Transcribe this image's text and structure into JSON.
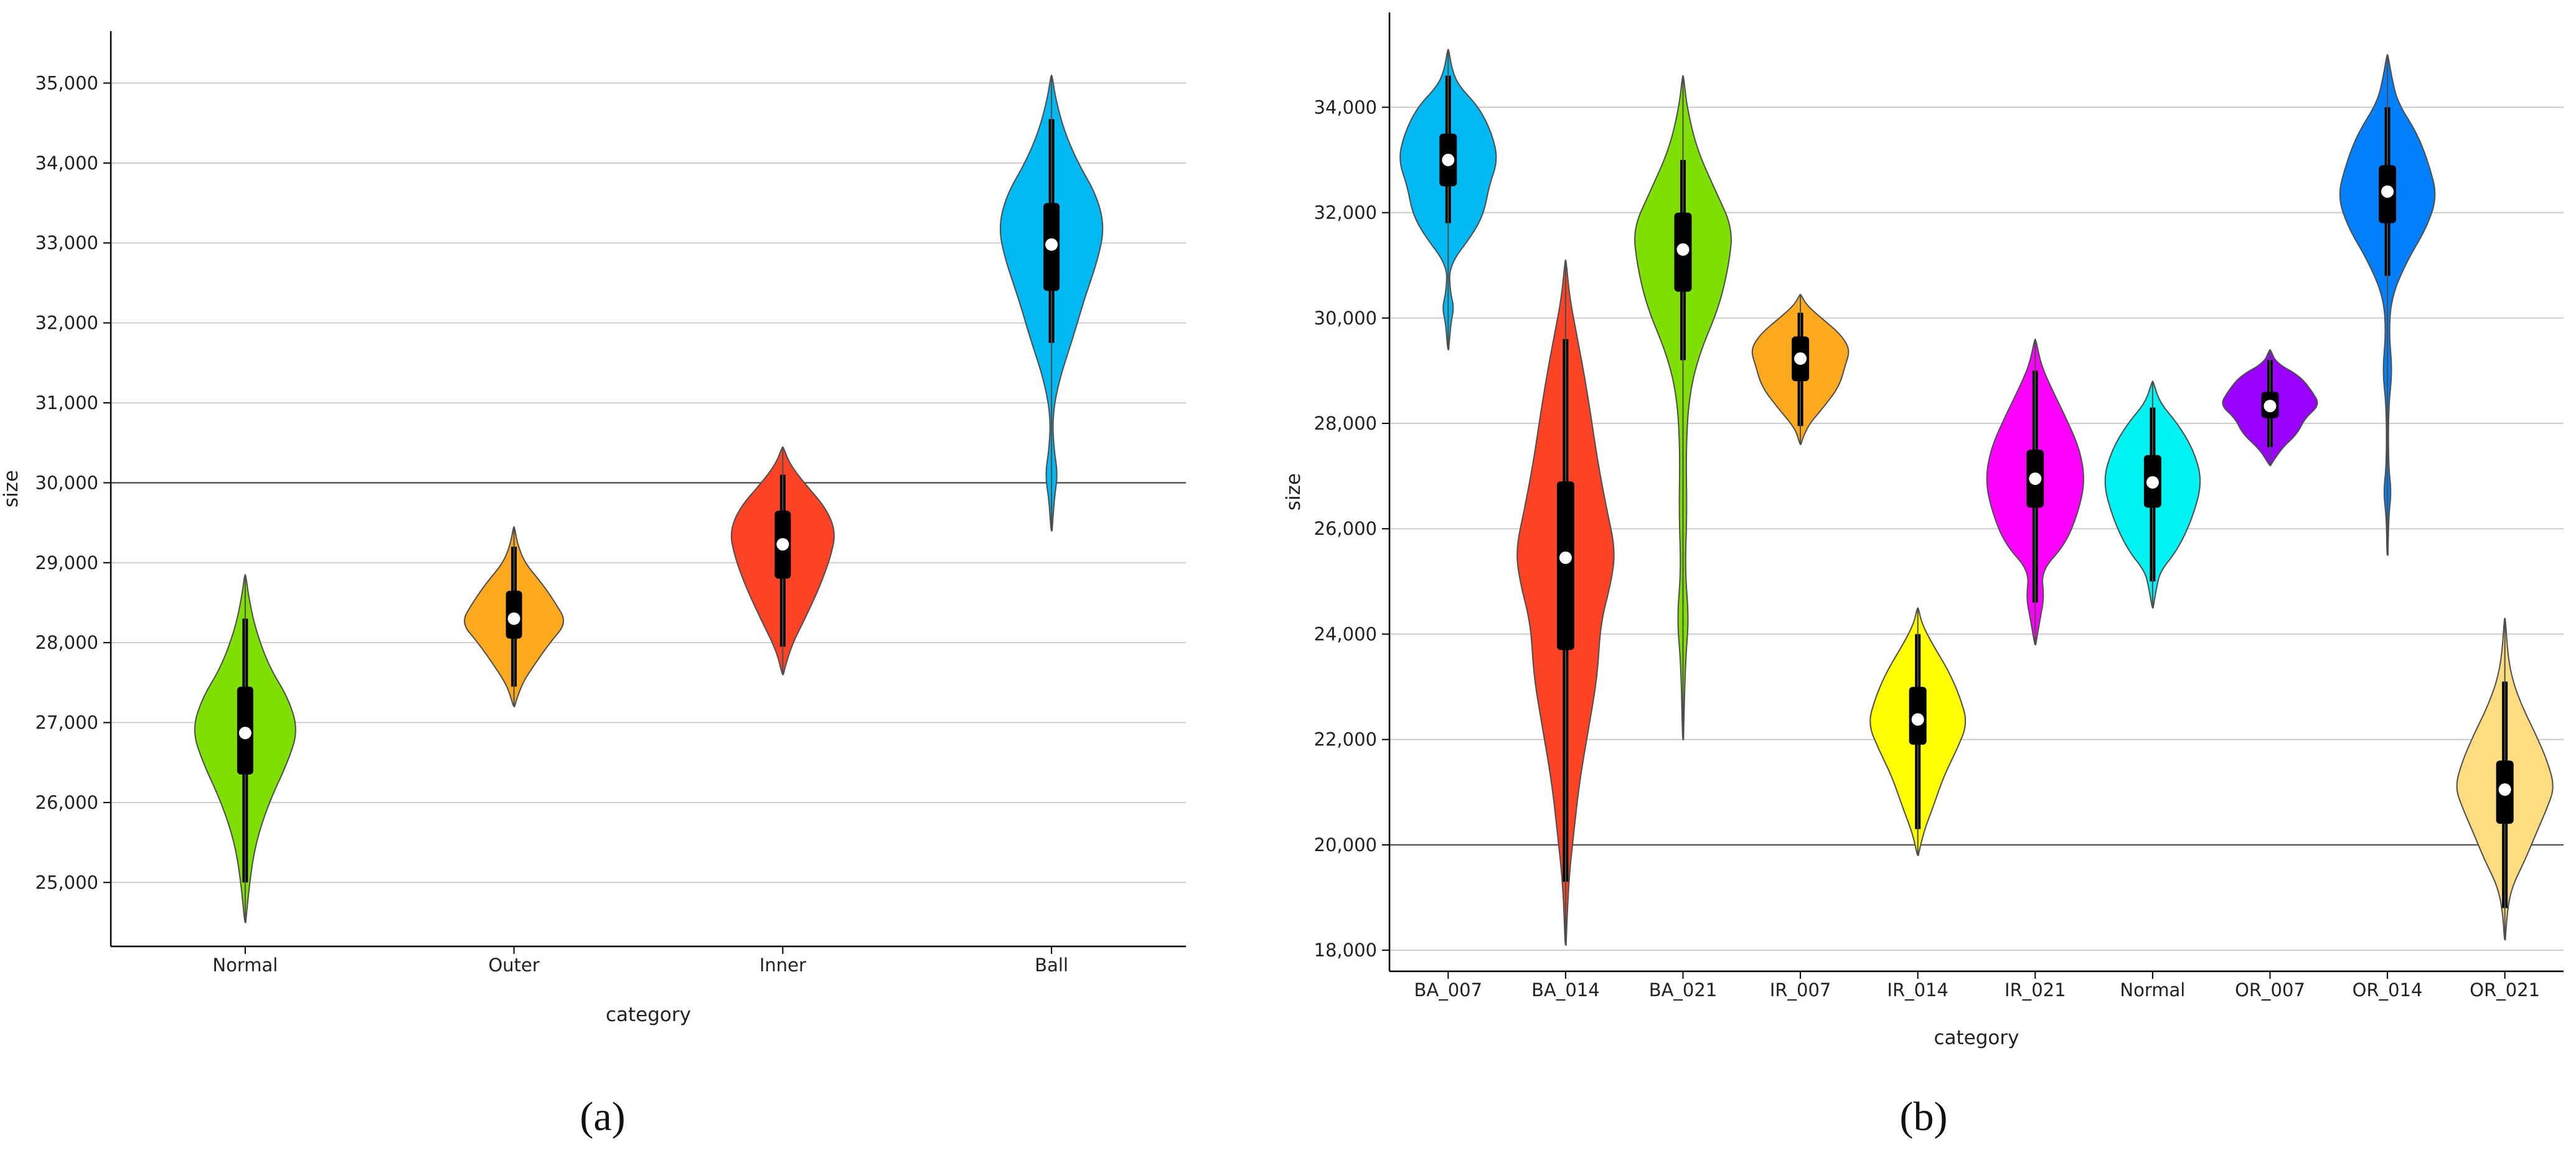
{
  "colors": {
    "grid": "#c8c8c8",
    "gridDark": "#555555",
    "axis": "#000000",
    "outline": "#4d4d4d",
    "box": "#000000",
    "median": "#ffffff"
  },
  "chart_data": [
    {
      "panel_label": "(a)",
      "type": "violin",
      "xlabel": "category",
      "ylabel": "size",
      "ylim": [
        24200,
        35650
      ],
      "yticks": [
        25000,
        26000,
        27000,
        28000,
        29000,
        30000,
        31000,
        32000,
        33000,
        34000,
        35000
      ],
      "ytick_labels": [
        "25,000",
        "26,000",
        "27,000",
        "28,000",
        "29,000",
        "30,000",
        "31,000",
        "32,000",
        "33,000",
        "34,000",
        "35,000"
      ],
      "dark_gridline": 30000,
      "categories": [
        "Normal",
        "Outer",
        "Inner",
        "Ball"
      ],
      "series": [
        {
          "color": "#7fe000",
          "min": 24500,
          "max": 28850,
          "whisker_low": 25000,
          "whisker_high": 28300,
          "q1": 26350,
          "q3": 27450,
          "median": 26870,
          "profile": [
            [
              24500,
              0.01
            ],
            [
              25000,
              0.08
            ],
            [
              25500,
              0.2
            ],
            [
              26000,
              0.45
            ],
            [
              26500,
              0.8
            ],
            [
              26900,
              1.0
            ],
            [
              27300,
              0.82
            ],
            [
              27700,
              0.45
            ],
            [
              28200,
              0.18
            ],
            [
              28600,
              0.06
            ],
            [
              28850,
              0.01
            ]
          ]
        },
        {
          "color": "#ffa91f",
          "min": 27200,
          "max": 29450,
          "whisker_low": 27450,
          "whisker_high": 29200,
          "q1": 28050,
          "q3": 28650,
          "median": 28300,
          "profile": [
            [
              27200,
              0.01
            ],
            [
              27450,
              0.12
            ],
            [
              27700,
              0.36
            ],
            [
              28000,
              0.68
            ],
            [
              28250,
              1.0
            ],
            [
              28500,
              0.78
            ],
            [
              28750,
              0.52
            ],
            [
              29000,
              0.2
            ],
            [
              29250,
              0.06
            ],
            [
              29450,
              0.01
            ]
          ]
        },
        {
          "color": "#ff4326",
          "min": 27600,
          "max": 30450,
          "whisker_low": 27950,
          "whisker_high": 30100,
          "q1": 28800,
          "q3": 29650,
          "median": 29230,
          "profile": [
            [
              27600,
              0.01
            ],
            [
              27900,
              0.12
            ],
            [
              28300,
              0.42
            ],
            [
              28700,
              0.7
            ],
            [
              29100,
              0.92
            ],
            [
              29400,
              1.0
            ],
            [
              29700,
              0.8
            ],
            [
              30000,
              0.4
            ],
            [
              30250,
              0.12
            ],
            [
              30450,
              0.01
            ]
          ]
        },
        {
          "color": "#00b8f2",
          "min": 29400,
          "max": 35100,
          "whisker_low": 31750,
          "whisker_high": 34550,
          "q1": 32400,
          "q3": 33500,
          "median": 32980,
          "profile": [
            [
              29400,
              0.01
            ],
            [
              29800,
              0.05
            ],
            [
              30100,
              0.12
            ],
            [
              30450,
              0.04
            ],
            [
              30850,
              0.02
            ],
            [
              31300,
              0.15
            ],
            [
              31800,
              0.4
            ],
            [
              32300,
              0.62
            ],
            [
              32800,
              0.88
            ],
            [
              33200,
              1.0
            ],
            [
              33600,
              0.85
            ],
            [
              34000,
              0.5
            ],
            [
              34400,
              0.24
            ],
            [
              34800,
              0.08
            ],
            [
              35100,
              0.01
            ]
          ]
        }
      ]
    },
    {
      "panel_label": "(b)",
      "type": "violin",
      "xlabel": "category",
      "ylabel": "size",
      "ylim": [
        17600,
        35800
      ],
      "yticks": [
        18000,
        20000,
        22000,
        24000,
        26000,
        28000,
        30000,
        32000,
        34000
      ],
      "ytick_labels": [
        "18,000",
        "20,000",
        "22,000",
        "24,000",
        "26,000",
        "28,000",
        "30,000",
        "32,000",
        "34,000"
      ],
      "dark_gridline": 20000,
      "categories": [
        "BA_007",
        "BA_014",
        "BA_021",
        "IR_007",
        "IR_014",
        "IR_021",
        "Normal",
        "OR_007",
        "OR_014",
        "OR_021"
      ],
      "series": [
        {
          "color": "#00b8f2",
          "min": 29400,
          "max": 35100,
          "whisker_low": 31800,
          "whisker_high": 34600,
          "q1": 32500,
          "q3": 33500,
          "median": 33000,
          "profile": [
            [
              29400,
              0.01
            ],
            [
              29900,
              0.05
            ],
            [
              30200,
              0.12
            ],
            [
              30500,
              0.04
            ],
            [
              31000,
              0.02
            ],
            [
              31600,
              0.5
            ],
            [
              32000,
              0.72
            ],
            [
              32500,
              0.82
            ],
            [
              33000,
              1.0
            ],
            [
              33500,
              0.88
            ],
            [
              34000,
              0.62
            ],
            [
              34400,
              0.22
            ],
            [
              34700,
              0.08
            ],
            [
              35100,
              0.01
            ]
          ]
        },
        {
          "color": "#ff4326",
          "min": 18100,
          "max": 31100,
          "whisker_low": 19300,
          "whisker_high": 29600,
          "q1": 23700,
          "q3": 26900,
          "median": 25450,
          "profile": [
            [
              18100,
              0.01
            ],
            [
              19200,
              0.05
            ],
            [
              20200,
              0.16
            ],
            [
              21200,
              0.28
            ],
            [
              22200,
              0.46
            ],
            [
              23200,
              0.64
            ],
            [
              24200,
              0.7
            ],
            [
              25000,
              0.92
            ],
            [
              25600,
              1.0
            ],
            [
              26400,
              0.82
            ],
            [
              27300,
              0.64
            ],
            [
              28200,
              0.5
            ],
            [
              29000,
              0.36
            ],
            [
              29700,
              0.22
            ],
            [
              30400,
              0.08
            ],
            [
              31100,
              0.01
            ]
          ]
        },
        {
          "color": "#7fe000",
          "min": 22000,
          "max": 34600,
          "whisker_low": 29200,
          "whisker_high": 33000,
          "q1": 30500,
          "q3": 32000,
          "median": 31300,
          "profile": [
            [
              22000,
              0.01
            ],
            [
              23400,
              0.04
            ],
            [
              24300,
              0.12
            ],
            [
              25200,
              0.04
            ],
            [
              26300,
              0.08
            ],
            [
              27500,
              0.06
            ],
            [
              28500,
              0.12
            ],
            [
              29300,
              0.32
            ],
            [
              30200,
              0.72
            ],
            [
              31000,
              0.92
            ],
            [
              31700,
              1.0
            ],
            [
              32400,
              0.66
            ],
            [
              33200,
              0.28
            ],
            [
              34000,
              0.08
            ],
            [
              34600,
              0.01
            ]
          ]
        },
        {
          "color": "#ffa91f",
          "min": 27600,
          "max": 30450,
          "whisker_low": 27950,
          "whisker_high": 30100,
          "q1": 28800,
          "q3": 29650,
          "median": 29230,
          "profile": [
            [
              27600,
              0.01
            ],
            [
              27900,
              0.1
            ],
            [
              28300,
              0.46
            ],
            [
              28700,
              0.78
            ],
            [
              29100,
              0.9
            ],
            [
              29400,
              1.0
            ],
            [
              29700,
              0.8
            ],
            [
              30000,
              0.42
            ],
            [
              30250,
              0.12
            ],
            [
              30450,
              0.01
            ]
          ]
        },
        {
          "color": "#ffff00",
          "min": 19800,
          "max": 24500,
          "whisker_low": 20300,
          "whisker_high": 24000,
          "q1": 21900,
          "q3": 23000,
          "median": 22380,
          "profile": [
            [
              19800,
              0.01
            ],
            [
              20200,
              0.1
            ],
            [
              20700,
              0.3
            ],
            [
              21300,
              0.52
            ],
            [
              21800,
              0.78
            ],
            [
              22300,
              1.0
            ],
            [
              22800,
              0.85
            ],
            [
              23300,
              0.62
            ],
            [
              23800,
              0.3
            ],
            [
              24200,
              0.08
            ],
            [
              24500,
              0.01
            ]
          ]
        },
        {
          "color": "#ff00ff",
          "min": 23800,
          "max": 29600,
          "whisker_low": 24600,
          "whisker_high": 29000,
          "q1": 26400,
          "q3": 27500,
          "median": 26950,
          "profile": [
            [
              23800,
              0.01
            ],
            [
              24300,
              0.1
            ],
            [
              24700,
              0.18
            ],
            [
              25200,
              0.12
            ],
            [
              25700,
              0.6
            ],
            [
              26300,
              0.86
            ],
            [
              26900,
              1.0
            ],
            [
              27500,
              0.9
            ],
            [
              28100,
              0.62
            ],
            [
              28600,
              0.36
            ],
            [
              29100,
              0.12
            ],
            [
              29600,
              0.01
            ]
          ]
        },
        {
          "color": "#00f2f2",
          "min": 24500,
          "max": 28800,
          "whisker_low": 25000,
          "whisker_high": 28300,
          "q1": 26400,
          "q3": 27400,
          "median": 26880,
          "profile": [
            [
              24500,
              0.01
            ],
            [
              24900,
              0.08
            ],
            [
              25200,
              0.16
            ],
            [
              25600,
              0.5
            ],
            [
              26200,
              0.8
            ],
            [
              26900,
              1.0
            ],
            [
              27500,
              0.82
            ],
            [
              28000,
              0.5
            ],
            [
              28400,
              0.14
            ],
            [
              28800,
              0.01
            ]
          ]
        },
        {
          "color": "#9900ff",
          "min": 27200,
          "max": 29400,
          "whisker_low": 27550,
          "whisker_high": 29200,
          "q1": 28100,
          "q3": 28600,
          "median": 28330,
          "profile": [
            [
              27200,
              0.01
            ],
            [
              27500,
              0.2
            ],
            [
              27800,
              0.55
            ],
            [
              28100,
              0.7
            ],
            [
              28350,
              1.0
            ],
            [
              28600,
              0.85
            ],
            [
              28900,
              0.6
            ],
            [
              29150,
              0.12
            ],
            [
              29400,
              0.01
            ]
          ]
        },
        {
          "color": "#0080ff",
          "min": 25500,
          "max": 35000,
          "whisker_low": 30800,
          "whisker_high": 34000,
          "q1": 31800,
          "q3": 32900,
          "median": 32400,
          "profile": [
            [
              25500,
              0.01
            ],
            [
              26200,
              0.02
            ],
            [
              26700,
              0.08
            ],
            [
              27200,
              0.02
            ],
            [
              28300,
              0.02
            ],
            [
              29000,
              0.1
            ],
            [
              29700,
              0.03
            ],
            [
              30400,
              0.08
            ],
            [
              31100,
              0.4
            ],
            [
              31700,
              0.78
            ],
            [
              32300,
              1.0
            ],
            [
              32900,
              0.84
            ],
            [
              33500,
              0.6
            ],
            [
              34100,
              0.2
            ],
            [
              34600,
              0.08
            ],
            [
              35000,
              0.01
            ]
          ]
        },
        {
          "color": "#ffdc80",
          "min": 18200,
          "max": 24300,
          "whisker_low": 18800,
          "whisker_high": 23100,
          "q1": 20400,
          "q3": 21600,
          "median": 21050,
          "profile": [
            [
              18200,
              0.01
            ],
            [
              18700,
              0.04
            ],
            [
              19200,
              0.14
            ],
            [
              19700,
              0.4
            ],
            [
              20200,
              0.62
            ],
            [
              20700,
              0.85
            ],
            [
              21100,
              1.0
            ],
            [
              21600,
              0.85
            ],
            [
              22100,
              0.62
            ],
            [
              22600,
              0.36
            ],
            [
              23100,
              0.16
            ],
            [
              23600,
              0.06
            ],
            [
              24300,
              0.01
            ]
          ]
        }
      ]
    }
  ]
}
